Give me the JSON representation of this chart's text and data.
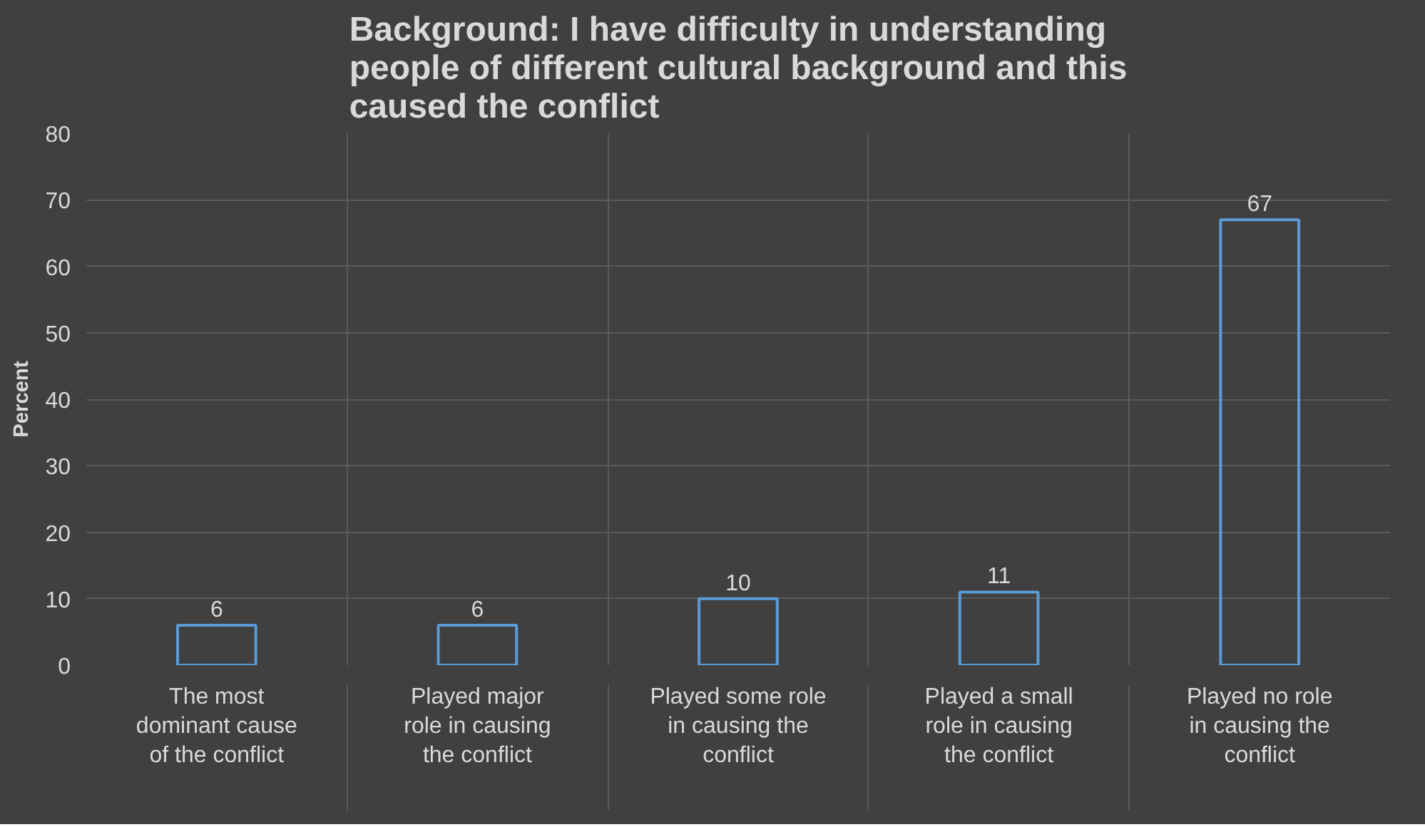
{
  "chart_data": {
    "type": "bar",
    "title": "Background: I have difficulty in understanding people of different cultural background and this caused the conflict",
    "ylabel": "Percent",
    "categories": [
      "The most dominant cause of the conflict",
      "Played major role in causing the conflict",
      "Played some role in causing the conflict",
      "Played a small role in causing the conflict",
      "Played no role in causing the conflict"
    ],
    "values": [
      6,
      6,
      10,
      11,
      67
    ],
    "color": "#5b9bd5",
    "ylim": [
      0,
      80
    ],
    "yticks": [
      0,
      10,
      20,
      30,
      40,
      50,
      60,
      70,
      80
    ],
    "grid": true,
    "data_labels": true
  }
}
